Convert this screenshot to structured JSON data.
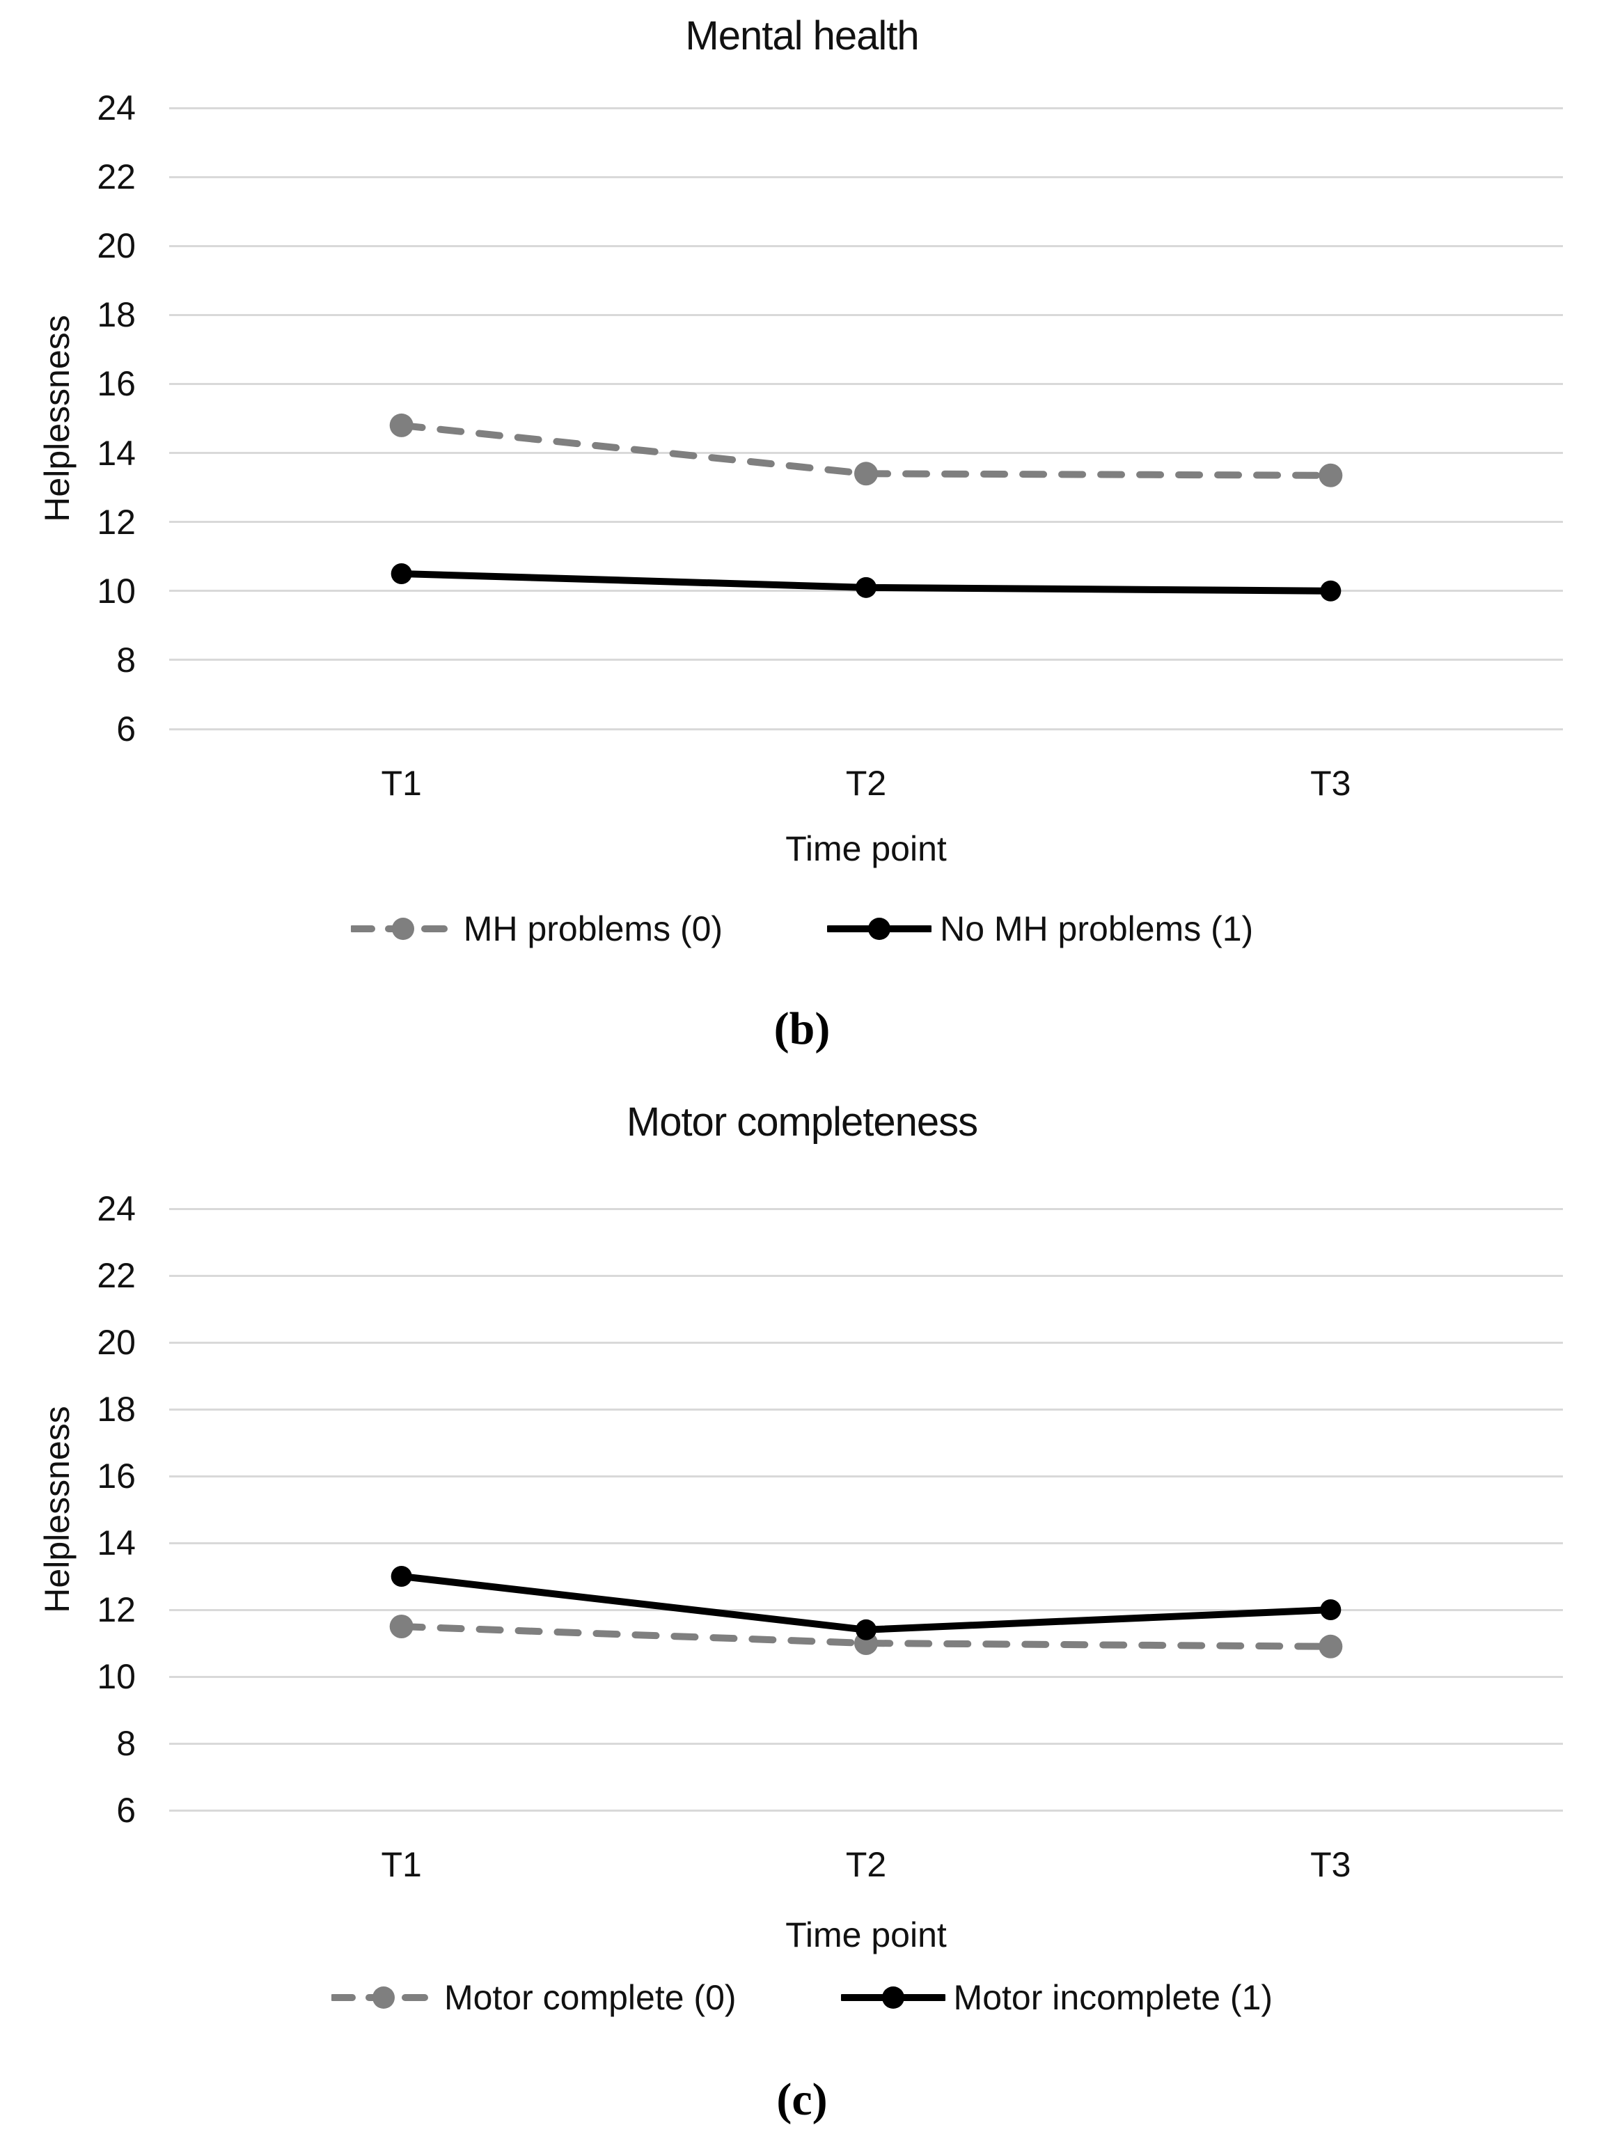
{
  "page": {
    "background": "#ffffff",
    "grid_color": "#d9d9d9"
  },
  "chart_data": [
    {
      "type": "line",
      "title": "Mental health",
      "xlabel": "Time point",
      "ylabel": "Helplessness",
      "panel_label": "(b)",
      "categories": [
        "T1",
        "T2",
        "T3"
      ],
      "yticks": [
        24,
        22,
        20,
        18,
        16,
        14,
        12,
        10,
        8,
        6
      ],
      "ylim": [
        6,
        24
      ],
      "grid": true,
      "grid_color": "#d9d9d9",
      "legend_position": "bottom",
      "series": [
        {
          "name": "MH problems (0)",
          "values": [
            14.8,
            13.4,
            13.35
          ],
          "color": "#7f7f7f",
          "line_style": "dashed",
          "marker": "circle"
        },
        {
          "name": "No MH problems (1)",
          "values": [
            10.5,
            10.1,
            10.0
          ],
          "color": "#000000",
          "line_style": "solid",
          "marker": "circle"
        }
      ]
    },
    {
      "type": "line",
      "title": "Motor completeness",
      "xlabel": "Time point",
      "ylabel": "Helplessness",
      "panel_label": "(c)",
      "categories": [
        "T1",
        "T2",
        "T3"
      ],
      "yticks": [
        24,
        22,
        20,
        18,
        16,
        14,
        12,
        10,
        8,
        6
      ],
      "ylim": [
        6,
        24
      ],
      "grid": true,
      "grid_color": "#d9d9d9",
      "legend_position": "bottom",
      "series": [
        {
          "name": "Motor complete (0)",
          "values": [
            11.5,
            11.0,
            10.9
          ],
          "color": "#7f7f7f",
          "line_style": "dashed",
          "marker": "circle"
        },
        {
          "name": "Motor incomplete (1)",
          "values": [
            13.0,
            11.4,
            12.0
          ],
          "color": "#000000",
          "line_style": "solid",
          "marker": "circle"
        }
      ]
    }
  ]
}
